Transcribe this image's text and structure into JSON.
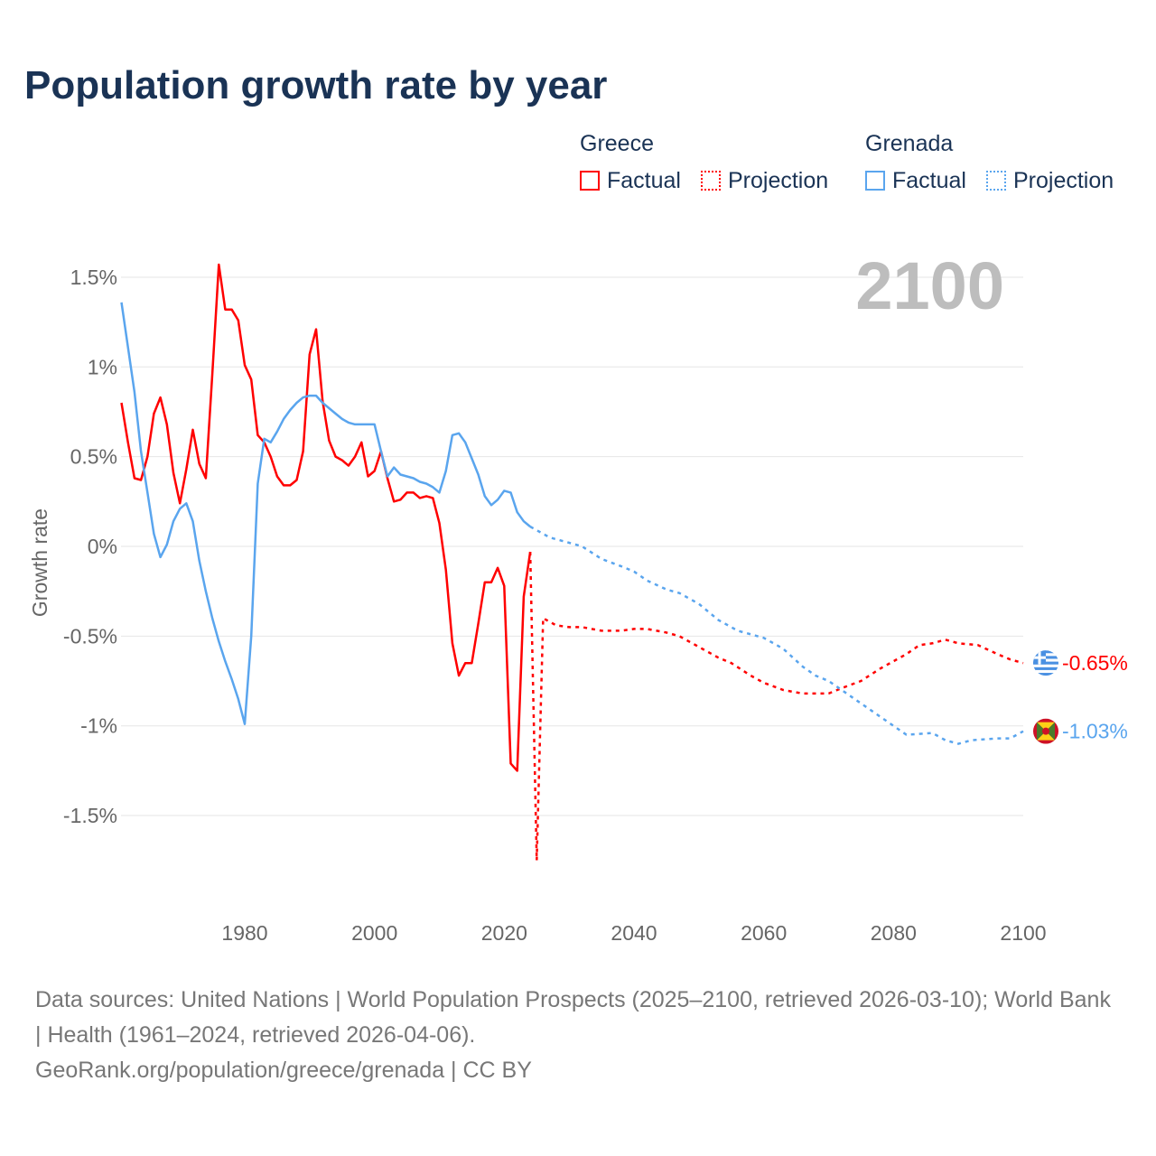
{
  "title": "Population growth rate by year",
  "legend": {
    "groups": [
      {
        "name": "Greece",
        "factual": "Factual",
        "projection": "Projection",
        "color": "#ff0000"
      },
      {
        "name": "Grenada",
        "factual": "Factual",
        "projection": "Projection",
        "color": "#5aa5ee"
      }
    ]
  },
  "footer": {
    "sources": "Data sources: United Nations | World Population Prospects (2025–2100, retrieved 2026-03-10); World Bank | Health (1961–2024, retrieved 2026-04-06).",
    "credit": "GeoRank.org/population/greece/grenada | CC BY"
  },
  "chart_data": {
    "type": "line",
    "title": "Population growth rate by year",
    "ylabel": "Growth rate",
    "xlabel": "",
    "xlim": [
      1961,
      2100
    ],
    "ylim": [
      -1.9,
      1.65
    ],
    "year_label": "2100",
    "x_ticks": [
      1980,
      2000,
      2020,
      2040,
      2060,
      2080,
      2100
    ],
    "y_ticks": [
      {
        "v": 1.5,
        "label": "1.5%"
      },
      {
        "v": 1,
        "label": "1%"
      },
      {
        "v": 0.5,
        "label": "0.5%"
      },
      {
        "v": 0,
        "label": "0%"
      },
      {
        "v": -0.5,
        "label": "-0.5%"
      },
      {
        "v": -1,
        "label": "-1%"
      },
      {
        "v": -1.5,
        "label": "-1.5%"
      }
    ],
    "grid": true,
    "series": [
      {
        "name": "Greece",
        "kind": "Factual",
        "color": "#ff0000",
        "x": [
          1961,
          1962,
          1963,
          1964,
          1965,
          1966,
          1967,
          1968,
          1969,
          1970,
          1971,
          1972,
          1973,
          1974,
          1975,
          1976,
          1977,
          1978,
          1979,
          1980,
          1981,
          1982,
          1983,
          1984,
          1985,
          1986,
          1987,
          1988,
          1989,
          1990,
          1991,
          1992,
          1993,
          1994,
          1995,
          1996,
          1997,
          1998,
          1999,
          2000,
          2001,
          2002,
          2003,
          2004,
          2005,
          2006,
          2007,
          2008,
          2009,
          2010,
          2011,
          2012,
          2013,
          2014,
          2015,
          2016,
          2017,
          2018,
          2019,
          2020,
          2021,
          2022,
          2023,
          2024
        ],
        "y": [
          0.8,
          0.58,
          0.38,
          0.37,
          0.5,
          0.74,
          0.83,
          0.68,
          0.41,
          0.24,
          0.43,
          0.65,
          0.46,
          0.38,
          0.96,
          1.57,
          1.32,
          1.32,
          1.26,
          1.01,
          0.93,
          0.62,
          0.58,
          0.5,
          0.39,
          0.34,
          0.34,
          0.37,
          0.53,
          1.07,
          1.21,
          0.81,
          0.59,
          0.5,
          0.48,
          0.45,
          0.5,
          0.58,
          0.39,
          0.42,
          0.53,
          0.38,
          0.25,
          0.26,
          0.3,
          0.3,
          0.27,
          0.28,
          0.27,
          0.13,
          -0.13,
          -0.54,
          -0.72,
          -0.65,
          -0.65,
          -0.43,
          -0.2,
          -0.2,
          -0.12,
          -0.22,
          -1.21,
          -1.25,
          -0.28,
          -0.03
        ]
      },
      {
        "name": "Greece",
        "kind": "Projection",
        "color": "#ff0000",
        "x": [
          2024,
          2025,
          2026,
          2028,
          2030,
          2032,
          2035,
          2038,
          2040,
          2042,
          2045,
          2047,
          2050,
          2053,
          2055,
          2058,
          2060,
          2063,
          2066,
          2068,
          2070,
          2072,
          2075,
          2078,
          2080,
          2082,
          2084,
          2086,
          2088,
          2090,
          2093,
          2096,
          2098,
          2100
        ],
        "y": [
          -0.03,
          -1.75,
          -0.4,
          -0.44,
          -0.45,
          -0.45,
          -0.47,
          -0.47,
          -0.46,
          -0.46,
          -0.48,
          -0.5,
          -0.56,
          -0.62,
          -0.65,
          -0.72,
          -0.76,
          -0.8,
          -0.82,
          -0.82,
          -0.82,
          -0.79,
          -0.75,
          -0.68,
          -0.64,
          -0.6,
          -0.55,
          -0.54,
          -0.52,
          -0.54,
          -0.55,
          -0.6,
          -0.63,
          -0.65
        ]
      },
      {
        "name": "Grenada",
        "kind": "Factual",
        "color": "#5aa5ee",
        "x": [
          1961,
          1962,
          1963,
          1964,
          1965,
          1966,
          1967,
          1968,
          1969,
          1970,
          1971,
          1972,
          1973,
          1974,
          1975,
          1976,
          1977,
          1978,
          1979,
          1980,
          1981,
          1982,
          1983,
          1984,
          1985,
          1986,
          1987,
          1988,
          1989,
          1990,
          1991,
          1992,
          1993,
          1994,
          1995,
          1996,
          1997,
          1998,
          1999,
          2000,
          2001,
          2002,
          2003,
          2004,
          2005,
          2006,
          2007,
          2008,
          2009,
          2010,
          2011,
          2012,
          2013,
          2014,
          2015,
          2016,
          2017,
          2018,
          2019,
          2020,
          2021,
          2022,
          2023,
          2024
        ],
        "y": [
          1.36,
          1.11,
          0.86,
          0.53,
          0.3,
          0.07,
          -0.06,
          0.01,
          0.14,
          0.21,
          0.24,
          0.14,
          -0.08,
          -0.25,
          -0.4,
          -0.53,
          -0.64,
          -0.74,
          -0.85,
          -0.99,
          -0.5,
          0.35,
          0.6,
          0.58,
          0.64,
          0.71,
          0.76,
          0.8,
          0.83,
          0.84,
          0.84,
          0.8,
          0.77,
          0.74,
          0.71,
          0.69,
          0.68,
          0.68,
          0.68,
          0.68,
          0.53,
          0.39,
          0.44,
          0.4,
          0.39,
          0.38,
          0.36,
          0.35,
          0.33,
          0.3,
          0.42,
          0.62,
          0.63,
          0.58,
          0.49,
          0.4,
          0.28,
          0.23,
          0.26,
          0.31,
          0.3,
          0.19,
          0.14,
          0.11
        ]
      },
      {
        "name": "Grenada",
        "kind": "Projection",
        "color": "#5aa5ee",
        "x": [
          2024,
          2025,
          2027,
          2030,
          2032,
          2035,
          2038,
          2040,
          2042,
          2045,
          2047,
          2050,
          2053,
          2056,
          2060,
          2063,
          2066,
          2068,
          2070,
          2074,
          2078,
          2080,
          2082,
          2086,
          2088,
          2090,
          2092,
          2096,
          2098,
          2100
        ],
        "y": [
          0.11,
          0.09,
          0.05,
          0.02,
          0.0,
          -0.07,
          -0.11,
          -0.14,
          -0.19,
          -0.24,
          -0.26,
          -0.32,
          -0.41,
          -0.47,
          -0.51,
          -0.57,
          -0.67,
          -0.72,
          -0.75,
          -0.85,
          -0.95,
          -1.0,
          -1.05,
          -1.04,
          -1.08,
          -1.1,
          -1.08,
          -1.07,
          -1.07,
          -1.03
        ]
      }
    ],
    "end_labels": [
      {
        "country": "Greece",
        "value": -0.65,
        "label": "-0.65%",
        "color": "#ff0000"
      },
      {
        "country": "Grenada",
        "value": -1.03,
        "label": "-1.03%",
        "color": "#5aa5ee"
      }
    ]
  }
}
